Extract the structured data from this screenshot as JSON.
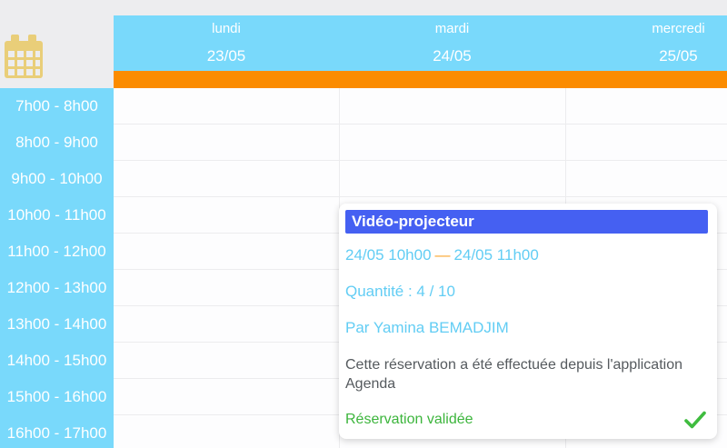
{
  "page": {
    "background_color": "#ededef"
  },
  "colors": {
    "sky_blue": "#79d9fb",
    "accent_orange": "#fb8c00",
    "popup_title_blue": "#4560f2",
    "popup_accent_cyan": "#62cdf4",
    "status_green": "#3cb53c",
    "icon_gold": "#e9ce79"
  },
  "icons": {
    "calendar": "calendar-icon",
    "check": "check-icon"
  },
  "header": {
    "days": [
      {
        "name": "lundi",
        "date": "23/05"
      },
      {
        "name": "mardi",
        "date": "24/05"
      },
      {
        "name": "mercredi",
        "date": "25/05"
      }
    ]
  },
  "time_column": {
    "slots": [
      "7h00 - 8h00",
      "8h00 - 9h00",
      "9h00 - 10h00",
      "10h00 - 11h00",
      "11h00 - 12h00",
      "12h00 - 13h00",
      "13h00 - 14h00",
      "14h00 - 15h00",
      "15h00 - 16h00",
      "16h00 - 17h00"
    ]
  },
  "popup": {
    "title": "Vidéo-projecteur",
    "time_range": {
      "start": "24/05 10h00",
      "separator": "—",
      "end": "24/05 11h00"
    },
    "quantity": "Quantité : 4 / 10",
    "reserved_by": "Par Yamina BEMADJIM",
    "note": "Cette réservation a été effectuée depuis l'application Agenda",
    "status": "Réservation validée"
  }
}
